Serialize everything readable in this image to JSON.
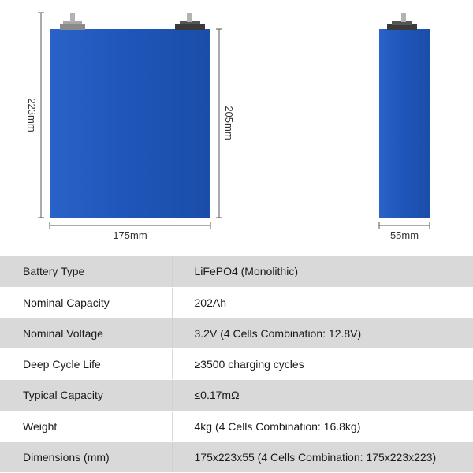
{
  "dimensions": {
    "height_total": "223mm",
    "height_body": "205mm",
    "width": "175mm",
    "thickness": "55mm"
  },
  "colors": {
    "cell_body": "#1f55b8",
    "terminal": "#7d7d7d",
    "row_shade": "#d9d9d9"
  },
  "specs": [
    {
      "label": "Battery Type",
      "value": "LiFePO4 (Monolithic)"
    },
    {
      "label": "Nominal Capacity",
      "value": "202Ah"
    },
    {
      "label": "Nominal Voltage",
      "value": "3.2V (4 Cells Combination: 12.8V)"
    },
    {
      "label": "Deep Cycle Life",
      "value": "≥3500 charging cycles"
    },
    {
      "label": "Typical Capacity",
      "value": "≤0.17mΩ"
    },
    {
      "label": "Weight",
      "value": "4kg (4 Cells Combination: 16.8kg)"
    },
    {
      "label": "Dimensions (mm)",
      "value": "175x223x55 (4 Cells Combination: 175x223x223)"
    }
  ]
}
